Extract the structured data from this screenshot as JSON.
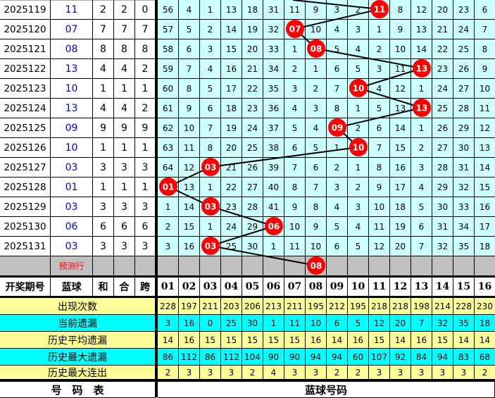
{
  "colors": {
    "grid_bg": "#ccffff",
    "ball": "#ff0000",
    "blue_text": "#0000ff",
    "predict_bg": "#c0c0c0",
    "stat_yellow": "#ffff99",
    "stat_cyan": "#00ffff"
  },
  "rows": [
    {
      "period": "2025119",
      "blue": "11",
      "sum": "2",
      "he": "2",
      "span": "0",
      "cells": [
        "56",
        "4",
        "1",
        "13",
        "18",
        "31",
        "11",
        "9",
        "3",
        "2",
        "11",
        "8",
        "12",
        "20",
        "23",
        "6"
      ],
      "hit": 10
    },
    {
      "period": "2025120",
      "blue": "07",
      "sum": "7",
      "he": "7",
      "span": "7",
      "cells": [
        "57",
        "5",
        "2",
        "14",
        "19",
        "32",
        "07",
        "10",
        "4",
        "3",
        "1",
        "9",
        "13",
        "21",
        "24",
        "7"
      ],
      "hit": 6
    },
    {
      "period": "2025121",
      "blue": "08",
      "sum": "8",
      "he": "8",
      "span": "8",
      "cells": [
        "58",
        "6",
        "3",
        "15",
        "20",
        "33",
        "1",
        "08",
        "5",
        "4",
        "2",
        "10",
        "14",
        "22",
        "25",
        "8"
      ],
      "hit": 7
    },
    {
      "period": "2025122",
      "blue": "13",
      "sum": "4",
      "he": "4",
      "span": "2",
      "cells": [
        "59",
        "7",
        "4",
        "16",
        "21",
        "34",
        "2",
        "1",
        "6",
        "5",
        "3",
        "11",
        "13",
        "23",
        "26",
        "9"
      ],
      "hit": 12
    },
    {
      "period": "2025123",
      "blue": "10",
      "sum": "1",
      "he": "1",
      "span": "1",
      "cells": [
        "60",
        "8",
        "5",
        "17",
        "22",
        "35",
        "3",
        "2",
        "7",
        "10",
        "4",
        "12",
        "1",
        "24",
        "27",
        "10"
      ],
      "hit": 9
    },
    {
      "period": "2025124",
      "blue": "13",
      "sum": "4",
      "he": "4",
      "span": "2",
      "cells": [
        "61",
        "9",
        "6",
        "18",
        "23",
        "36",
        "4",
        "3",
        "8",
        "1",
        "5",
        "13",
        "13",
        "25",
        "28",
        "11"
      ],
      "hit": 12
    },
    {
      "period": "2025125",
      "blue": "09",
      "sum": "9",
      "he": "9",
      "span": "9",
      "cells": [
        "62",
        "10",
        "7",
        "19",
        "24",
        "37",
        "5",
        "4",
        "09",
        "2",
        "6",
        "14",
        "1",
        "26",
        "29",
        "12"
      ],
      "hit": 8
    },
    {
      "period": "2025126",
      "blue": "10",
      "sum": "1",
      "he": "1",
      "span": "1",
      "cells": [
        "63",
        "11",
        "8",
        "20",
        "25",
        "38",
        "6",
        "5",
        "1",
        "10",
        "7",
        "15",
        "2",
        "27",
        "30",
        "13"
      ],
      "hit": 9
    },
    {
      "period": "2025127",
      "blue": "03",
      "sum": "3",
      "he": "3",
      "span": "3",
      "cells": [
        "64",
        "12",
        "03",
        "21",
        "26",
        "39",
        "7",
        "6",
        "2",
        "1",
        "8",
        "16",
        "3",
        "28",
        "31",
        "14"
      ],
      "hit": 2
    },
    {
      "period": "2025128",
      "blue": "01",
      "sum": "1",
      "he": "1",
      "span": "1",
      "cells": [
        "01",
        "13",
        "1",
        "22",
        "27",
        "40",
        "8",
        "7",
        "3",
        "2",
        "9",
        "17",
        "4",
        "29",
        "32",
        "15"
      ],
      "hit": 0
    },
    {
      "period": "2025129",
      "blue": "03",
      "sum": "3",
      "he": "3",
      "span": "3",
      "cells": [
        "1",
        "14",
        "03",
        "23",
        "28",
        "41",
        "9",
        "8",
        "4",
        "3",
        "10",
        "18",
        "5",
        "30",
        "33",
        "16"
      ],
      "hit": 2
    },
    {
      "period": "2025130",
      "blue": "06",
      "sum": "6",
      "he": "6",
      "span": "6",
      "cells": [
        "2",
        "15",
        "1",
        "24",
        "29",
        "06",
        "10",
        "9",
        "5",
        "4",
        "11",
        "19",
        "6",
        "31",
        "34",
        "17"
      ],
      "hit": 5
    },
    {
      "period": "2025131",
      "blue": "03",
      "sum": "3",
      "he": "3",
      "span": "3",
      "cells": [
        "3",
        "16",
        "03",
        "25",
        "30",
        "1",
        "11",
        "10",
        "6",
        "5",
        "12",
        "20",
        "7",
        "32",
        "35",
        "18"
      ],
      "hit": 2
    }
  ],
  "prediction": {
    "label": "预测行",
    "ball": "08",
    "hit": 7
  },
  "header": {
    "period": "开奖期号",
    "blue": "蓝球",
    "sum": "和",
    "he": "合",
    "span": "跨",
    "numbers": [
      "01",
      "02",
      "03",
      "04",
      "05",
      "06",
      "07",
      "08",
      "09",
      "10",
      "11",
      "12",
      "13",
      "14",
      "15",
      "16"
    ]
  },
  "stats": [
    {
      "label": "出现次数",
      "values": [
        "228",
        "197",
        "211",
        "203",
        "206",
        "213",
        "211",
        "195",
        "212",
        "195",
        "218",
        "218",
        "198",
        "214",
        "228",
        "230"
      ]
    },
    {
      "label": "当前遗漏",
      "values": [
        "3",
        "16",
        "0",
        "25",
        "30",
        "1",
        "11",
        "10",
        "6",
        "5",
        "12",
        "20",
        "7",
        "32",
        "35",
        "18"
      ]
    },
    {
      "label": "历史平均遗漏",
      "values": [
        "14",
        "16",
        "15",
        "15",
        "15",
        "15",
        "15",
        "16",
        "14",
        "16",
        "15",
        "14",
        "16",
        "15",
        "14",
        "14"
      ]
    },
    {
      "label": "历史最大遗漏",
      "values": [
        "86",
        "112",
        "86",
        "112",
        "104",
        "90",
        "90",
        "94",
        "94",
        "60",
        "107",
        "92",
        "84",
        "94",
        "83",
        "68"
      ]
    },
    {
      "label": "历史最大连出",
      "values": [
        "2",
        "3",
        "3",
        "3",
        "2",
        "4",
        "3",
        "3",
        "2",
        "2",
        "3",
        "3",
        "3",
        "3",
        "3",
        "2"
      ]
    }
  ],
  "footer": {
    "left": "号　码　表",
    "right": "蓝球号码"
  }
}
